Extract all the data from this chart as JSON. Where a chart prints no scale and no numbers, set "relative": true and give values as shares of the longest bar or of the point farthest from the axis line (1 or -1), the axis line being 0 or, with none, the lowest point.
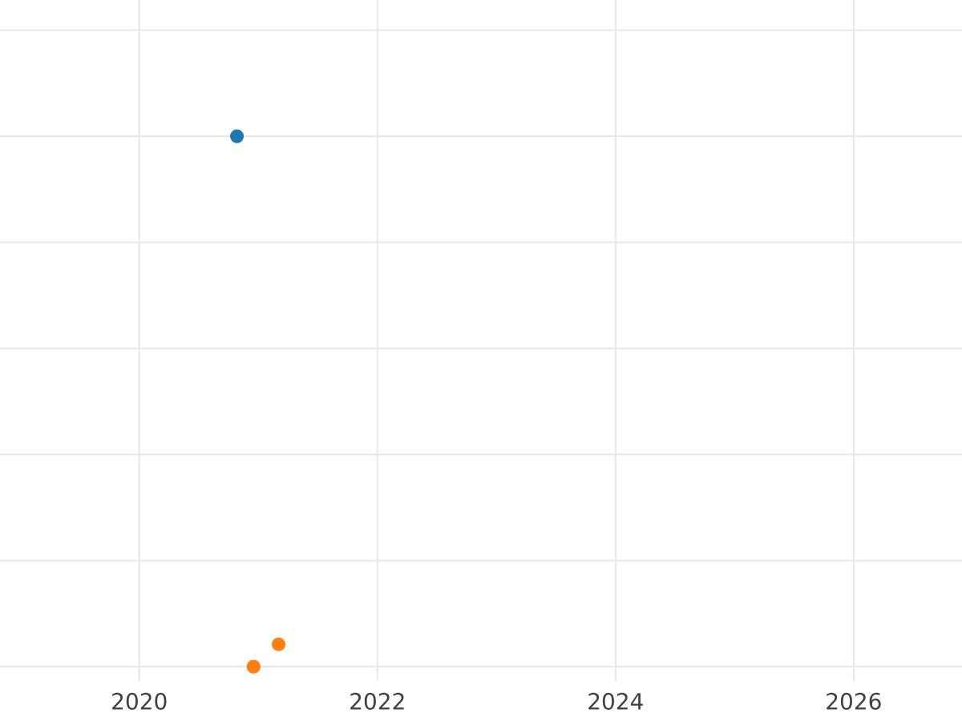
{
  "chart_data": {
    "type": "scatter",
    "relative": true,
    "grid": true,
    "xlim": [
      2018.83,
      2026.91
    ],
    "xticks": [
      2020,
      2022,
      2024,
      2026
    ],
    "tick_labels": "x",
    "series": [
      {
        "color": "#1f77b4",
        "x": [
          2020.82
        ],
        "values": [
          1
        ]
      },
      {
        "color": "#ff7f0e",
        "x": [
          2020.96,
          2021.17
        ],
        "values": [
          0,
          0.042
        ]
      }
    ]
  }
}
